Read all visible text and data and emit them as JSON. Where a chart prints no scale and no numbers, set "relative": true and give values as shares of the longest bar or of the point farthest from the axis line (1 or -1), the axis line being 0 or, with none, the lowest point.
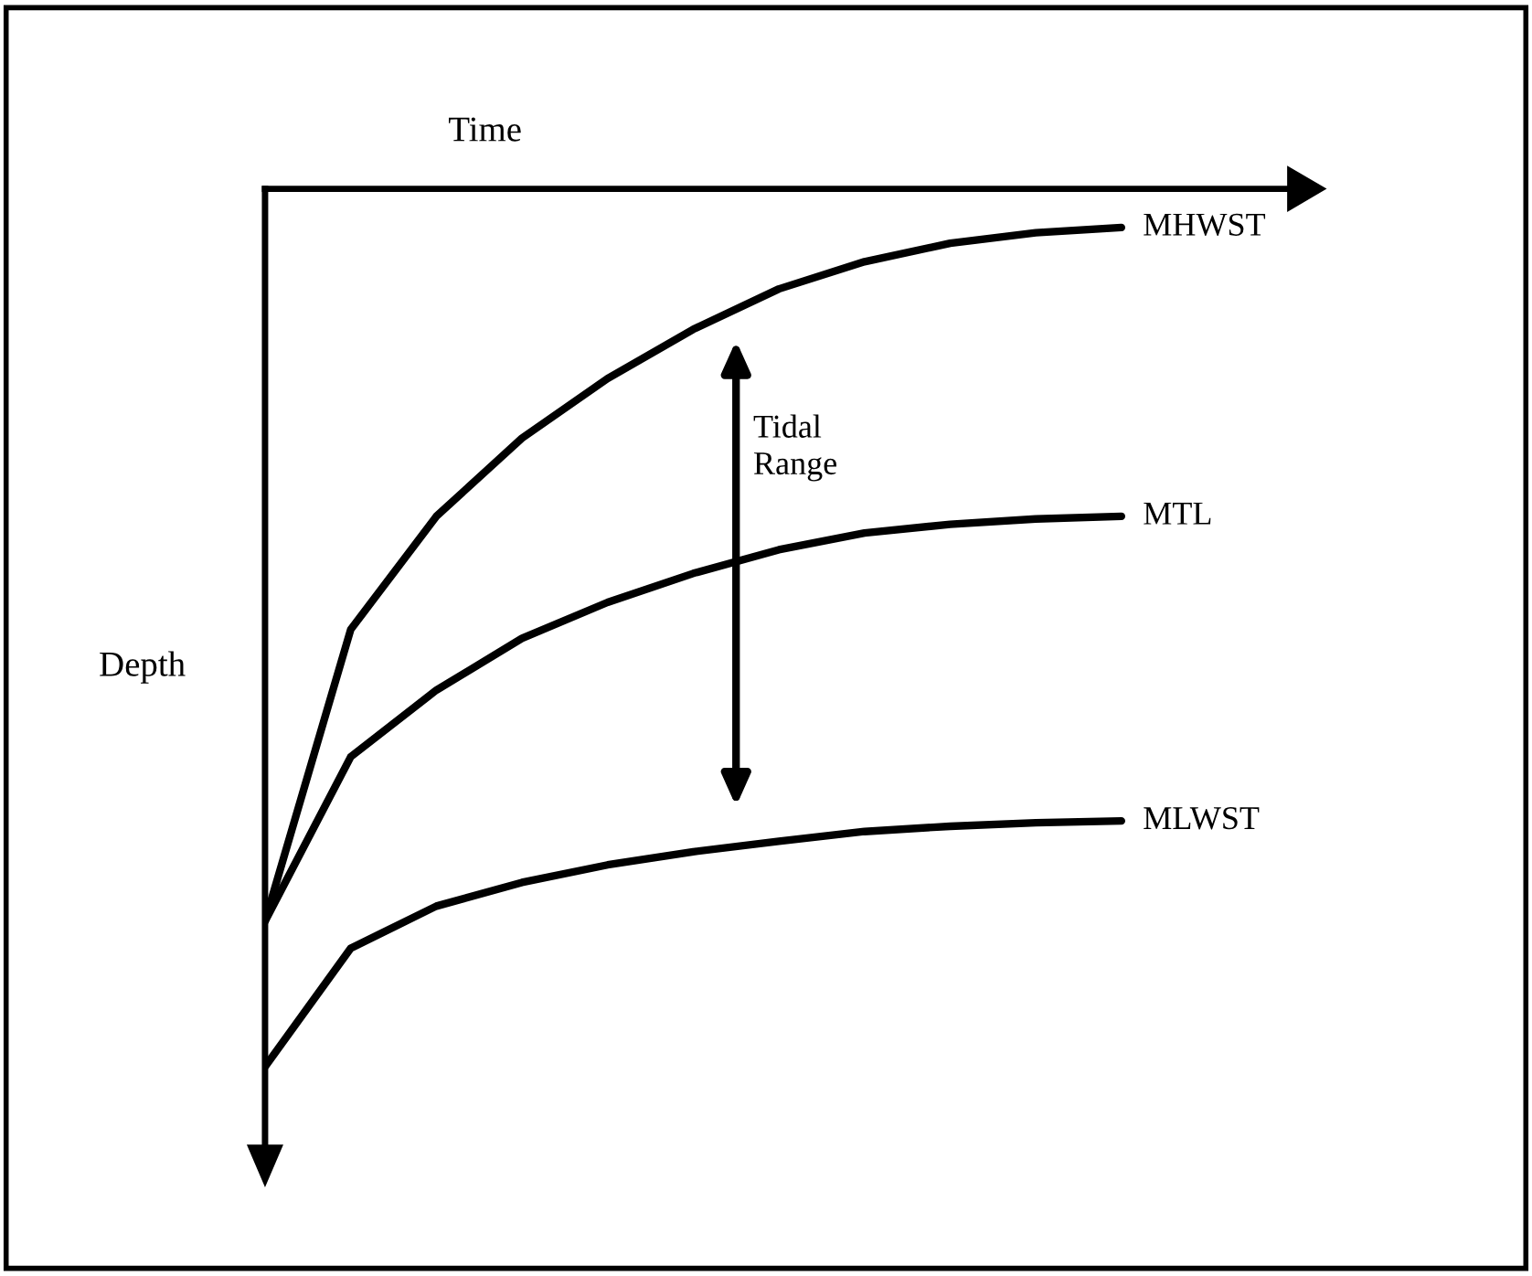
{
  "chart_data": {
    "type": "line",
    "relative": true,
    "xlabel": "Time",
    "ylabel": "Depth",
    "categories": [
      null,
      null,
      null,
      null,
      null,
      null,
      null,
      null,
      null,
      null,
      null
    ],
    "series": [
      {
        "name": "MHWST",
        "color": "#000000",
        "values": [
          -0.834,
          -0.502,
          -0.373,
          -0.284,
          -0.216,
          -0.16,
          -0.114,
          -0.083,
          -0.062,
          -0.05,
          -0.044
        ]
      },
      {
        "name": "MTL",
        "color": "#000000",
        "values": [
          -0.834,
          -0.647,
          -0.571,
          -0.512,
          -0.471,
          -0.438,
          -0.411,
          -0.392,
          -0.382,
          -0.376,
          -0.373
        ]
      },
      {
        "name": "MLWST",
        "color": "#000000",
        "values": [
          -1,
          -0.865,
          -0.817,
          -0.79,
          -0.77,
          -0.755,
          -0.743,
          -0.732,
          -0.726,
          -0.722,
          -0.72
        ]
      }
    ],
    "annotations": [
      "Tidal\nRange"
    ],
    "marker": "none",
    "line_style": "solid"
  }
}
